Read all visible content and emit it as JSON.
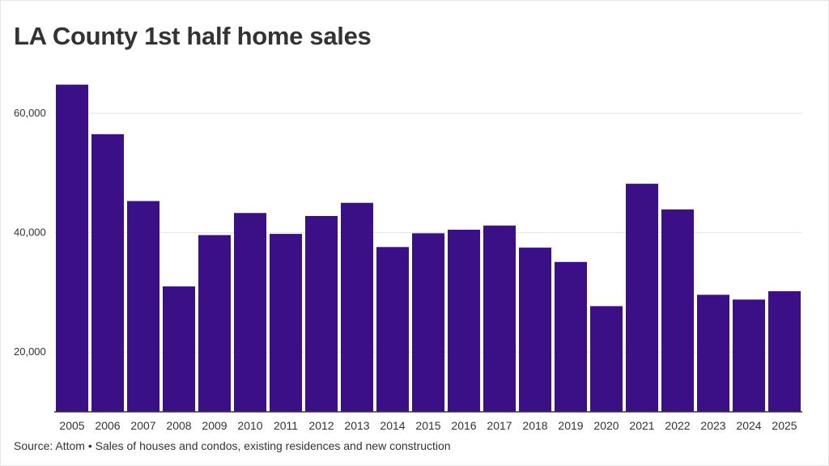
{
  "title": "LA County 1st half home sales",
  "source": "Source: Attom • Sales of houses and condos, existing residences and new construction",
  "colors": {
    "bar": "#3b0f86",
    "grid": "#e4e4e4",
    "axis": "#333333",
    "text": "#333333"
  },
  "chart_data": {
    "type": "bar",
    "title": "LA County 1st half home sales",
    "xlabel": "",
    "ylabel": "",
    "categories": [
      "2005",
      "2006",
      "2007",
      "2008",
      "2009",
      "2010",
      "2011",
      "2012",
      "2013",
      "2014",
      "2015",
      "2016",
      "2017",
      "2018",
      "2019",
      "2020",
      "2021",
      "2022",
      "2023",
      "2024",
      "2025"
    ],
    "values": [
      64800,
      56500,
      45300,
      31000,
      39600,
      43300,
      39800,
      42800,
      45000,
      37600,
      39900,
      40500,
      41200,
      37500,
      35100,
      27700,
      48200,
      43900,
      29600,
      28800,
      30200
    ],
    "ylim": [
      10000,
      68000
    ],
    "yticks": [
      20000,
      40000,
      60000
    ],
    "ytick_labels": [
      "20,000",
      "40,000",
      "60,000"
    ],
    "grid": true
  }
}
